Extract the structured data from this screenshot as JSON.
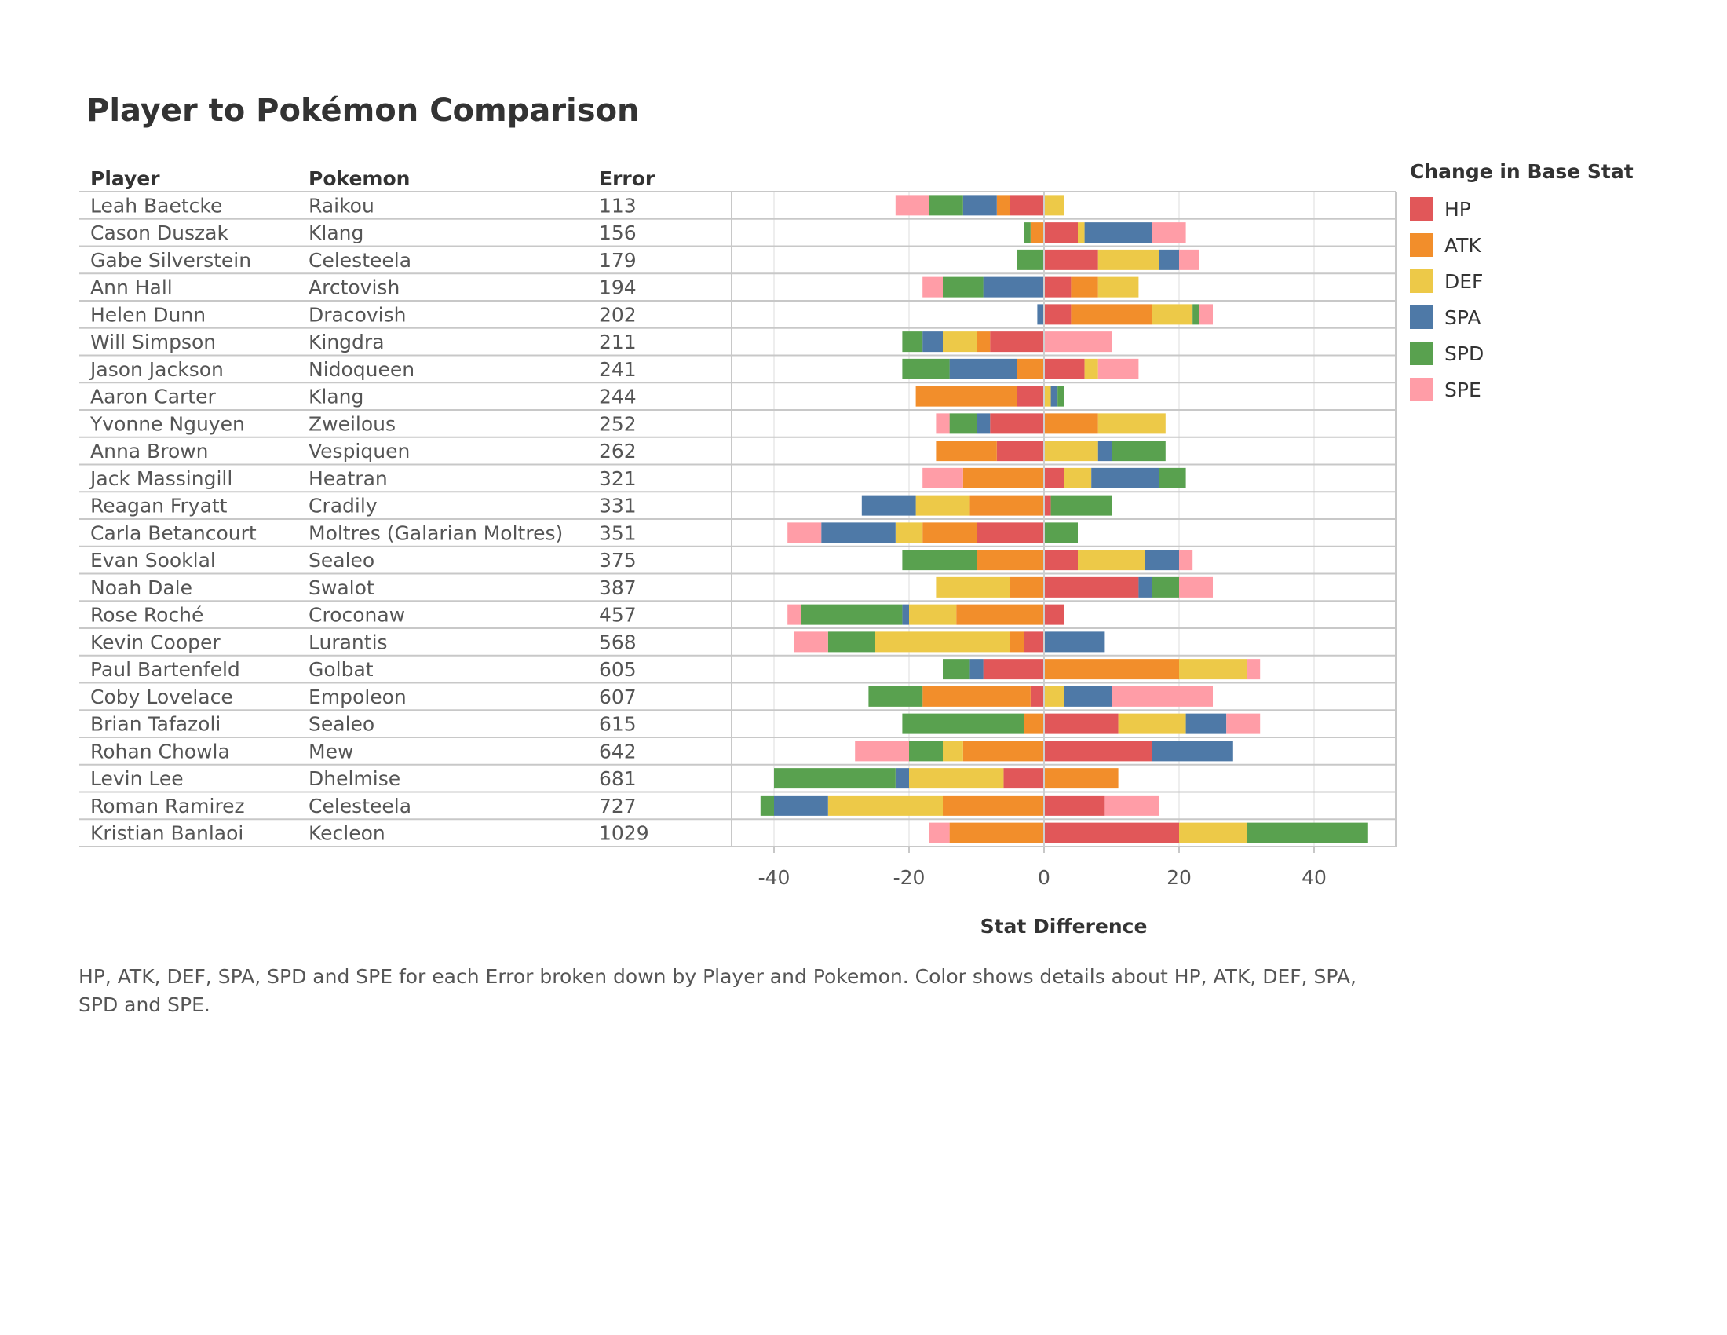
{
  "title": "Player to Pokémon Comparison",
  "caption": "HP, ATK, DEF, SPA, SPD and SPE for each Error broken down by Player and Pokemon.  Color shows details about HP, ATK, DEF, SPA, SPD and SPE.",
  "legend": {
    "title": "Change in Base Stat",
    "items": [
      {
        "label": "HP",
        "color": "#e15759"
      },
      {
        "label": "ATK",
        "color": "#f28e2b"
      },
      {
        "label": "DEF",
        "color": "#edc948"
      },
      {
        "label": "SPA",
        "color": "#4e79a7"
      },
      {
        "label": "SPD",
        "color": "#59a14f"
      },
      {
        "label": "SPE",
        "color": "#ff9da7"
      }
    ]
  },
  "chart_data": {
    "type": "bar",
    "orientation": "horizontal-diverging-stacked",
    "columns": [
      "Player",
      "Pokemon",
      "Error"
    ],
    "xlabel": "Stat Difference",
    "xticks": [
      -40,
      -20,
      0,
      20,
      40
    ],
    "xlim": [
      -46,
      52
    ],
    "stats": [
      "HP",
      "ATK",
      "DEF",
      "SPA",
      "SPD",
      "SPE"
    ],
    "rows": [
      {
        "player": "Leah Baetcke",
        "pokemon": "Raikou",
        "error": "113",
        "HP": -5,
        "ATK": -2,
        "DEF": 3,
        "SPA": -5,
        "SPD": -5,
        "SPE": -5
      },
      {
        "player": "Cason Duszak",
        "pokemon": "Klang",
        "error": "156",
        "HP": 5,
        "ATK": -2,
        "DEF": 1,
        "SPA": 10,
        "SPD": -1,
        "SPE": 5
      },
      {
        "player": "Gabe Silverstein",
        "pokemon": "Celesteela",
        "error": "179",
        "HP": 8,
        "ATK": 0,
        "DEF": 9,
        "SPA": 3,
        "SPD": -4,
        "SPE": 3
      },
      {
        "player": "Ann Hall",
        "pokemon": "Arctovish",
        "error": "194",
        "HP": 4,
        "ATK": 4,
        "DEF": 6,
        "SPA": -9,
        "SPD": -6,
        "SPE": -3
      },
      {
        "player": "Helen Dunn",
        "pokemon": "Dracovish",
        "error": "202",
        "HP": 4,
        "ATK": 12,
        "DEF": 6,
        "SPA": -1,
        "SPD": 1,
        "SPE": 2
      },
      {
        "player": "Will Simpson",
        "pokemon": "Kingdra",
        "error": "211",
        "HP": -8,
        "ATK": -2,
        "DEF": -5,
        "SPA": -3,
        "SPD": -3,
        "SPE": 10
      },
      {
        "player": "Jason Jackson",
        "pokemon": "Nidoqueen",
        "error": "241",
        "HP": 6,
        "ATK": -4,
        "DEF": 2,
        "SPA": -10,
        "SPD": -7,
        "SPE": 6
      },
      {
        "player": "Aaron Carter",
        "pokemon": "Klang",
        "error": "244",
        "HP": -4,
        "ATK": -15,
        "DEF": 1,
        "SPA": 1,
        "SPD": 1,
        "SPE": 0
      },
      {
        "player": "Yvonne Nguyen",
        "pokemon": "Zweilous",
        "error": "252",
        "HP": -8,
        "ATK": 8,
        "DEF": 10,
        "SPA": -2,
        "SPD": -4,
        "SPE": -2
      },
      {
        "player": "Anna Brown",
        "pokemon": "Vespiquen",
        "error": "262",
        "HP": -7,
        "ATK": -9,
        "DEF": 8,
        "SPA": 2,
        "SPD": 8,
        "SPE": 0
      },
      {
        "player": "Jack Massingill",
        "pokemon": "Heatran",
        "error": "321",
        "HP": 3,
        "ATK": -12,
        "DEF": 4,
        "SPA": 10,
        "SPD": 4,
        "SPE": -6
      },
      {
        "player": "Reagan Fryatt",
        "pokemon": "Cradily",
        "error": "331",
        "HP": 1,
        "ATK": -11,
        "DEF": -8,
        "SPA": -8,
        "SPD": 9,
        "SPE": 0
      },
      {
        "player": "Carla Betancourt",
        "pokemon": "Moltres (Galarian Moltres)",
        "error": "351",
        "HP": -10,
        "ATK": -8,
        "DEF": -4,
        "SPA": -11,
        "SPD": 5,
        "SPE": -5
      },
      {
        "player": "Evan Sooklal",
        "pokemon": "Sealeo",
        "error": "375",
        "HP": 5,
        "ATK": -10,
        "DEF": 10,
        "SPA": 5,
        "SPD": -11,
        "SPE": 2
      },
      {
        "player": "Noah Dale",
        "pokemon": "Swalot",
        "error": "387",
        "HP": 14,
        "ATK": -5,
        "DEF": -11,
        "SPA": 2,
        "SPD": 4,
        "SPE": 5
      },
      {
        "player": "Rose Roché",
        "pokemon": "Croconaw",
        "error": "457",
        "HP": 3,
        "ATK": -13,
        "DEF": -7,
        "SPA": -1,
        "SPD": -15,
        "SPE": -2
      },
      {
        "player": "Kevin Cooper",
        "pokemon": "Lurantis",
        "error": "568",
        "HP": -3,
        "ATK": -2,
        "DEF": -20,
        "SPA": 9,
        "SPD": -7,
        "SPE": -5
      },
      {
        "player": "Paul Bartenfeld",
        "pokemon": "Golbat",
        "error": "605",
        "HP": -9,
        "ATK": 20,
        "DEF": 10,
        "SPA": -2,
        "SPD": -4,
        "SPE": 2
      },
      {
        "player": "Coby Lovelace",
        "pokemon": "Empoleon",
        "error": "607",
        "HP": -2,
        "ATK": -16,
        "DEF": 3,
        "SPA": 7,
        "SPD": -8,
        "SPE": 15
      },
      {
        "player": "Brian Tafazoli",
        "pokemon": "Sealeo",
        "error": "615",
        "HP": 11,
        "ATK": -3,
        "DEF": 10,
        "SPA": 6,
        "SPD": -18,
        "SPE": 5
      },
      {
        "player": "Rohan Chowla",
        "pokemon": "Mew",
        "error": "642",
        "HP": 16,
        "ATK": -12,
        "DEF": -3,
        "SPA": 12,
        "SPD": -5,
        "SPE": -8
      },
      {
        "player": "Levin Lee",
        "pokemon": "Dhelmise",
        "error": "681",
        "HP": -6,
        "ATK": 11,
        "DEF": -14,
        "SPA": -2,
        "SPD": -18,
        "SPE": 0
      },
      {
        "player": "Roman Ramirez",
        "pokemon": "Celesteela",
        "error": "727",
        "HP": 9,
        "ATK": -15,
        "DEF": -17,
        "SPA": -8,
        "SPD": -2,
        "SPE": 8
      },
      {
        "player": "Kristian Banlaoi",
        "pokemon": "Kecleon",
        "error": "1029",
        "HP": 20,
        "ATK": -14,
        "DEF": 10,
        "SPA": 0,
        "SPD": 18,
        "SPE": -3
      }
    ]
  }
}
